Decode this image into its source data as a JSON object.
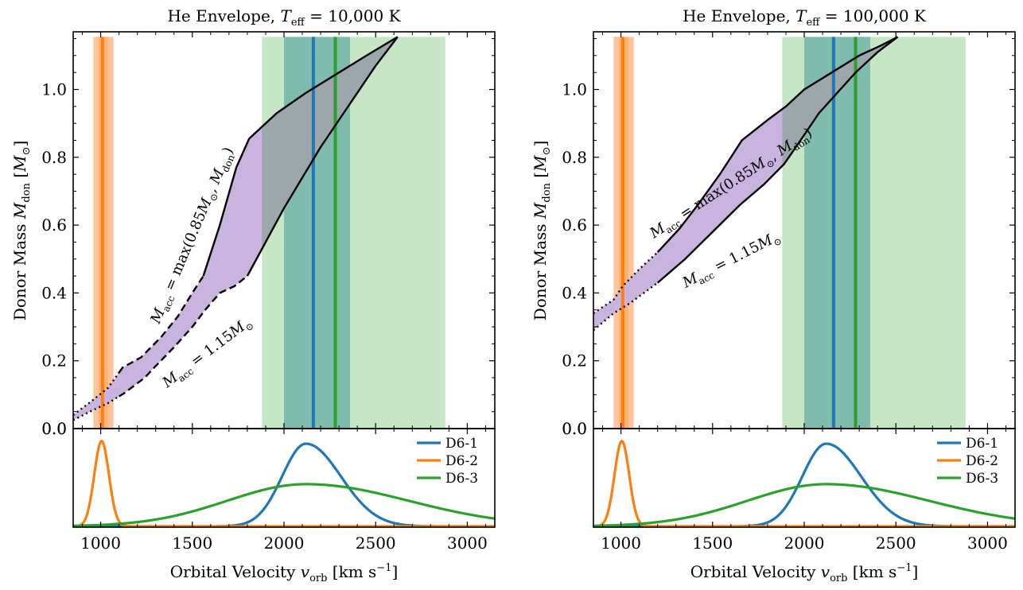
{
  "figure": {
    "xlabel": "Orbital Velocity v_orb [km s^-1]",
    "ylabel": "Donor Mass M_don [M_⊙]"
  },
  "colors": {
    "d61": "#1f77b4",
    "d62": "#ff7f0e",
    "d63": "#2ca02c",
    "band_orange": "#ffbb88",
    "band_orange_inner": "#ffc08a",
    "band_green": "#c6e6c6",
    "band_green_inner": "#7fbcad",
    "fill_purple": "#c9b3df",
    "fill_gray": "#9aa6a8"
  },
  "chart_data": [
    {
      "type": "area",
      "title": "He Envelope, T_eff = 10,000 K",
      "xlabel": "Orbital Velocity v_orb [km s^-1]",
      "ylabel": "Donor Mass M_don [M_⊙]",
      "xlim": [
        850,
        3150
      ],
      "ylim": [
        0,
        1.17
      ],
      "xticks": [
        "1000",
        "1500",
        "2000",
        "2500",
        "3000"
      ],
      "yticks": [
        "0.0",
        "0.2",
        "0.4",
        "0.6",
        "0.8",
        "1.0"
      ],
      "annotations": [
        "M_acc = max(0.85 M_⊙, M_don)",
        "M_acc = 1.15 M_⊙"
      ],
      "bands": [
        {
          "star": "D6-2",
          "outer": [
            960,
            1070
          ],
          "inner": [
            990,
            1040
          ],
          "center": 1010
        },
        {
          "star": "D6-1",
          "outer": [
            2000,
            2360
          ],
          "inner": [
            2000,
            2360
          ],
          "center": 2160
        },
        {
          "star": "D6-3",
          "outer": [
            1880,
            2880
          ],
          "inner": [
            2000,
            2360
          ],
          "center": 2280
        }
      ],
      "series": [
        {
          "role": "upper",
          "style": [
            "dotted",
            "dashed",
            "solid"
          ],
          "x": [
            850,
            960,
            1040,
            1120,
            1220,
            1330,
            1420,
            1500,
            1560,
            1650,
            1740,
            1810,
            1960,
            2120,
            2300,
            2450,
            2620
          ],
          "y": [
            0.04,
            0.085,
            0.12,
            0.18,
            0.21,
            0.27,
            0.33,
            0.4,
            0.45,
            0.6,
            0.77,
            0.855,
            0.93,
            0.99,
            1.05,
            1.1,
            1.155
          ]
        },
        {
          "role": "lower",
          "style": [
            "dotted",
            "dashed",
            "solid"
          ],
          "x": [
            850,
            960,
            1040,
            1130,
            1240,
            1310,
            1400,
            1500,
            1570,
            1650,
            1730,
            1800,
            1850,
            1920,
            2000,
            2100,
            2200,
            2300,
            2400,
            2500,
            2620
          ],
          "y": [
            0.025,
            0.055,
            0.075,
            0.105,
            0.15,
            0.19,
            0.24,
            0.3,
            0.35,
            0.4,
            0.42,
            0.45,
            0.5,
            0.57,
            0.65,
            0.74,
            0.83,
            0.91,
            0.99,
            1.07,
            1.155
          ]
        }
      ],
      "segment_breaks": {
        "dotted_to_dashed": 1100,
        "dashed_to_solid_upper": 1560,
        "dashed_to_solid_lower": 1800
      },
      "grid": false
    },
    {
      "type": "line",
      "xlim": [
        850,
        3150
      ],
      "series": [
        {
          "name": "D6-1",
          "peak": 2120,
          "sigma_left": 130,
          "sigma_right": 190,
          "height": 0.92
        },
        {
          "name": "D6-2",
          "peak": 1005,
          "sigma_left": 40,
          "sigma_right": 40,
          "height": 0.95
        },
        {
          "name": "D6-3",
          "peak": 2120,
          "sigma_left": 430,
          "sigma_right": 560,
          "height": 0.47
        }
      ],
      "legend": "top-right"
    },
    {
      "type": "area",
      "title": "He Envelope, T_eff = 100,000 K",
      "xlabel": "Orbital Velocity v_orb [km s^-1]",
      "ylabel": "Donor Mass M_don [M_⊙]",
      "xlim": [
        850,
        3150
      ],
      "ylim": [
        0,
        1.17
      ],
      "xticks": [
        "1000",
        "1500",
        "2000",
        "2500",
        "3000"
      ],
      "yticks": [
        "0.0",
        "0.2",
        "0.4",
        "0.6",
        "0.8",
        "1.0"
      ],
      "annotations": [
        "M_acc = max(0.85 M_⊙, M_don)",
        "M_acc = 1.15 M_⊙"
      ],
      "bands": [
        {
          "star": "D6-2",
          "outer": [
            960,
            1070
          ],
          "inner": [
            990,
            1040
          ],
          "center": 1010
        },
        {
          "star": "D6-1",
          "outer": [
            2000,
            2360
          ],
          "inner": [
            2000,
            2360
          ],
          "center": 2160
        },
        {
          "star": "D6-3",
          "outer": [
            1880,
            2880
          ],
          "inner": [
            2000,
            2360
          ],
          "center": 2280
        }
      ],
      "series": [
        {
          "role": "upper",
          "style": [
            "dotted",
            "solid"
          ],
          "x": [
            850,
            960,
            1010,
            1100,
            1200,
            1320,
            1420,
            1540,
            1660,
            1800,
            1900,
            2000,
            2150,
            2300,
            2420,
            2510
          ],
          "y": [
            0.34,
            0.38,
            0.42,
            0.47,
            0.52,
            0.59,
            0.66,
            0.75,
            0.85,
            0.91,
            0.95,
            1.0,
            1.05,
            1.1,
            1.13,
            1.155
          ]
        },
        {
          "role": "lower",
          "style": [
            "dotted",
            "solid"
          ],
          "x": [
            850,
            960,
            1050,
            1200,
            1350,
            1500,
            1650,
            1780,
            1890,
            1980,
            2080,
            2180,
            2280,
            2400,
            2510
          ],
          "y": [
            0.29,
            0.34,
            0.37,
            0.43,
            0.5,
            0.58,
            0.66,
            0.72,
            0.78,
            0.85,
            0.93,
            0.99,
            1.05,
            1.11,
            1.155
          ]
        }
      ],
      "segment_breaks": {
        "dotted_to_solid": 1200
      },
      "grid": false
    },
    {
      "type": "line",
      "xlim": [
        850,
        3150
      ],
      "series": [
        {
          "name": "D6-1",
          "peak": 2120,
          "sigma_left": 130,
          "sigma_right": 190,
          "height": 0.92
        },
        {
          "name": "D6-2",
          "peak": 1005,
          "sigma_left": 40,
          "sigma_right": 40,
          "height": 0.95
        },
        {
          "name": "D6-3",
          "peak": 2120,
          "sigma_left": 430,
          "sigma_right": 560,
          "height": 0.47
        }
      ],
      "legend": "top-right"
    }
  ]
}
